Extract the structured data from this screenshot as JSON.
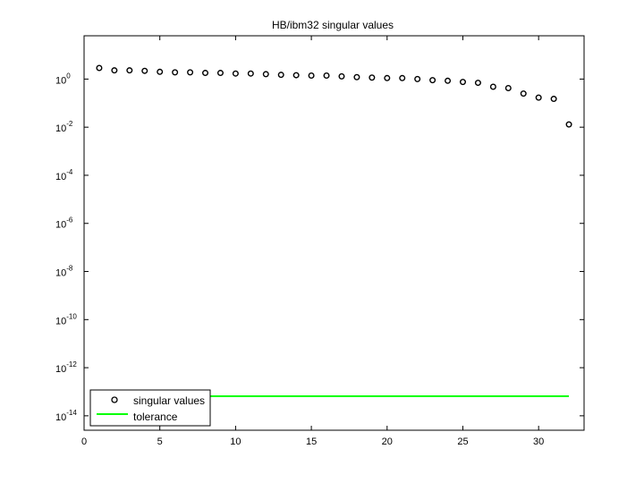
{
  "chart_data": {
    "type": "scatter",
    "title": "HB/ibm32 singular values",
    "xlabel": "",
    "ylabel": "",
    "xlim": [
      0,
      33
    ],
    "ylim_log10": [
      -14.6,
      1.8
    ],
    "y_scale": "log",
    "grid": false,
    "legend_position": "bottom-left",
    "x_ticks": [
      0,
      5,
      10,
      15,
      20,
      25,
      30
    ],
    "x_tick_labels": [
      "0",
      "5",
      "10",
      "15",
      "20",
      "25",
      "30"
    ],
    "y_ticks_log10": [
      0,
      -2,
      -4,
      -6,
      -8,
      -10,
      -12,
      -14
    ],
    "y_tick_base": "10",
    "y_tick_exponents": [
      "0",
      "-2",
      "-4",
      "-6",
      "-8",
      "-10",
      "-12",
      "-14"
    ],
    "series": [
      {
        "name": "singular values",
        "marker": "circle",
        "color": "#000000",
        "x": [
          1,
          2,
          3,
          4,
          5,
          6,
          7,
          8,
          9,
          10,
          11,
          12,
          13,
          14,
          15,
          16,
          17,
          18,
          19,
          20,
          21,
          22,
          23,
          24,
          25,
          26,
          27,
          28,
          29,
          30,
          31,
          32
        ],
        "y": [
          2.9,
          2.3,
          2.3,
          2.2,
          2.0,
          1.9,
          1.9,
          1.8,
          1.8,
          1.7,
          1.7,
          1.6,
          1.5,
          1.45,
          1.4,
          1.4,
          1.3,
          1.2,
          1.15,
          1.1,
          1.1,
          1.0,
          0.9,
          0.85,
          0.76,
          0.7,
          0.48,
          0.42,
          0.25,
          0.17,
          0.15,
          0.013
        ]
      },
      {
        "name": "tolerance",
        "marker": "line",
        "color": "#00ff00",
        "x": [
          1,
          32
        ],
        "y": [
          6.5e-14,
          6.5e-14
        ]
      }
    ]
  }
}
